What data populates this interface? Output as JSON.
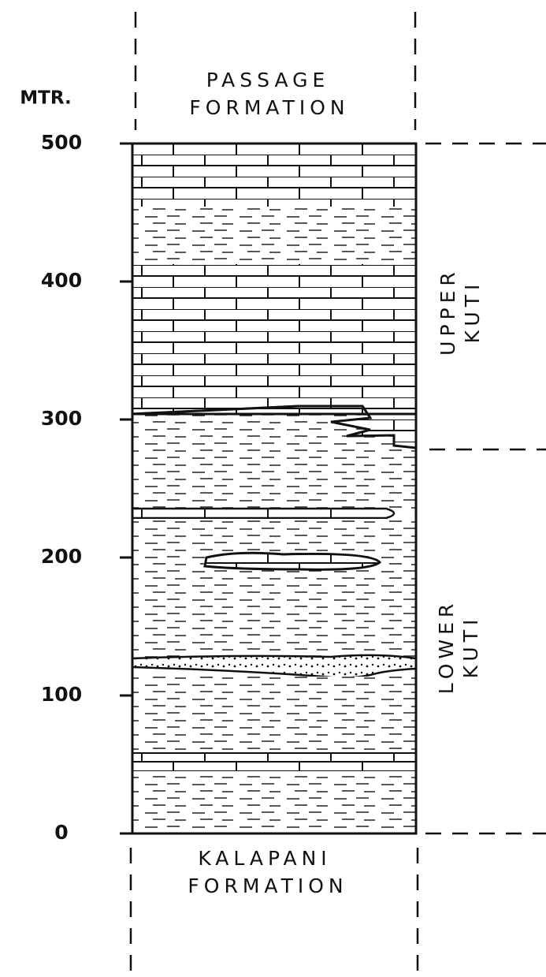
{
  "header": {
    "unit": "MTR."
  },
  "scale": {
    "ticks": [
      0,
      100,
      200,
      300,
      400,
      500
    ]
  },
  "formations": {
    "top": [
      "PASSAGE",
      "FORMATION"
    ],
    "bottom": [
      "KALAPANI",
      "FORMATION"
    ]
  },
  "members": [
    {
      "label": [
        "UPPER",
        "KUTI"
      ]
    },
    {
      "label": [
        "LOWER",
        "KUTI"
      ]
    }
  ]
}
